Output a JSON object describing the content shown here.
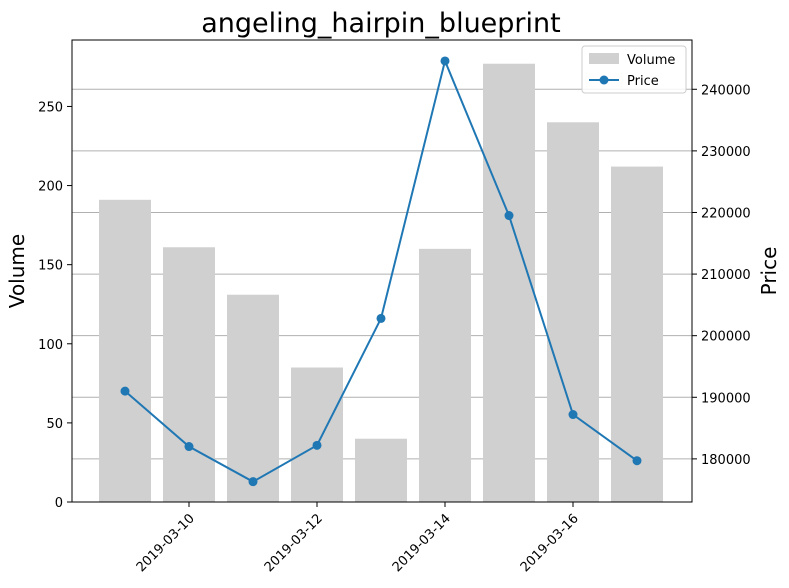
{
  "chart_data": {
    "type": "bar+line",
    "title": "angeling_hairpin_blueprint",
    "ylabel_left": "Volume",
    "ylabel_right": "Price",
    "dates": [
      "2019-03-09",
      "2019-03-10",
      "2019-03-11",
      "2019-03-12",
      "2019-03-13",
      "2019-03-14",
      "2019-03-15",
      "2019-03-16",
      "2019-03-17"
    ],
    "x_ticks": [
      "2019-03-10",
      "2019-03-12",
      "2019-03-14",
      "2019-03-16"
    ],
    "left_axis": {
      "ylim": [
        0,
        292
      ],
      "ticks": [
        0,
        50,
        100,
        150,
        200,
        250
      ]
    },
    "right_axis": {
      "ylim": [
        173000,
        248000
      ],
      "ticks": [
        180000,
        190000,
        200000,
        210000,
        220000,
        230000,
        240000
      ]
    },
    "grid": "right-axis horizontal",
    "legend_position": "top-right",
    "series": [
      {
        "name": "Volume",
        "kind": "bar",
        "axis": "left",
        "color": "#d0d0d0",
        "values": [
          191,
          161,
          131,
          85,
          40,
          160,
          277,
          240,
          212
        ]
      },
      {
        "name": "Price",
        "kind": "line",
        "axis": "right",
        "color": "#1f77b4",
        "values": [
          191000,
          182000,
          176300,
          182200,
          202800,
          244600,
          219500,
          187200,
          179700
        ]
      }
    ]
  }
}
